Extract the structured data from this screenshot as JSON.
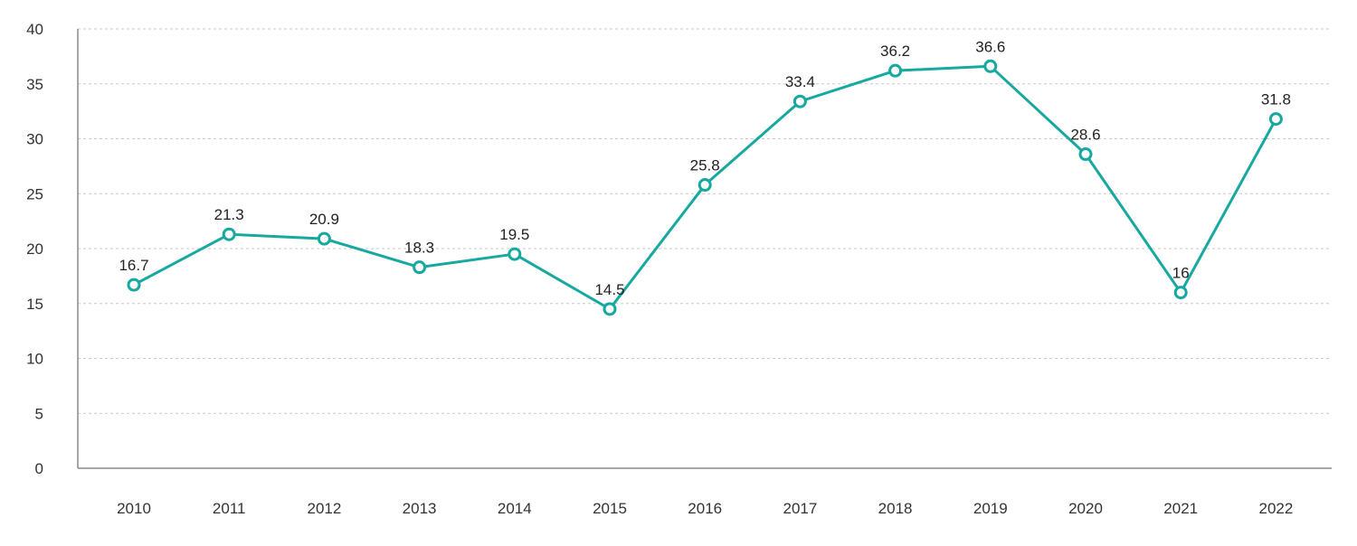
{
  "chart_data": {
    "type": "line",
    "x": [
      "2010",
      "2011",
      "2012",
      "2013",
      "2014",
      "2015",
      "2016",
      "2017",
      "2018",
      "2019",
      "2020",
      "2021",
      "2022"
    ],
    "series": [
      {
        "values": [
          16.7,
          21.3,
          20.9,
          18.3,
          19.5,
          14.5,
          25.8,
          33.4,
          36.2,
          36.6,
          28.6,
          16,
          31.8
        ],
        "data_labels": [
          "16.7",
          "21.3",
          "20.9",
          "18.3",
          "19.5",
          "14.5",
          "25.8",
          "33.4",
          "36.2",
          "36.6",
          "28.6",
          "16",
          "31.8"
        ]
      }
    ],
    "y_ticks": [
      "0",
      "5",
      "10",
      "15",
      "20",
      "25",
      "30",
      "35",
      "40"
    ],
    "ylim": [
      0,
      40
    ],
    "title": "",
    "xlabel": "",
    "ylabel": "",
    "grid": "horizontal-dashed",
    "colors": {
      "line": "#17a8a0",
      "marker_fill": "#ffffff",
      "axis": "#8a8a8a",
      "grid": "#c9c9c9",
      "tick_text": "#333333",
      "label_text": "#222222"
    }
  }
}
